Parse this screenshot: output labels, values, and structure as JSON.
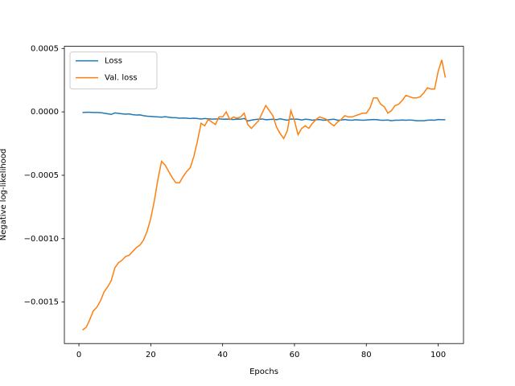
{
  "chart_data": {
    "type": "line",
    "xlabel": "Epochs",
    "ylabel": "Negative log-likelihood",
    "x": [
      1,
      2,
      3,
      4,
      5,
      6,
      7,
      8,
      9,
      10,
      11,
      12,
      13,
      14,
      15,
      16,
      17,
      18,
      19,
      20,
      21,
      22,
      23,
      24,
      25,
      26,
      27,
      28,
      29,
      30,
      31,
      32,
      33,
      34,
      35,
      36,
      37,
      38,
      39,
      40,
      41,
      42,
      43,
      44,
      45,
      46,
      47,
      48,
      49,
      50,
      51,
      52,
      53,
      54,
      55,
      56,
      57,
      58,
      59,
      60,
      61,
      62,
      63,
      64,
      65,
      66,
      67,
      68,
      69,
      70,
      71,
      72,
      73,
      74,
      75,
      76,
      77,
      78,
      79,
      80,
      81,
      82,
      83,
      84,
      85,
      86,
      87,
      88,
      89,
      90,
      91,
      92,
      93,
      94,
      95,
      96,
      97,
      98,
      99,
      100,
      101,
      102
    ],
    "series": [
      {
        "name": "Loss",
        "color": "#1f77b4",
        "values": [
          -5e-06,
          -3e-06,
          -3e-06,
          -5e-06,
          -5e-06,
          -6e-06,
          -1e-05,
          -1.5e-05,
          -2e-05,
          -8e-06,
          -1.2e-05,
          -1.5e-05,
          -1.8e-05,
          -1.6e-05,
          -2.2e-05,
          -2.5e-05,
          -2.4e-05,
          -3e-05,
          -3.4e-05,
          -3.6e-05,
          -3.8e-05,
          -4e-05,
          -4.2e-05,
          -3.8e-05,
          -4.2e-05,
          -4.6e-05,
          -4.6e-05,
          -5e-05,
          -4.8e-05,
          -5e-05,
          -5.2e-05,
          -5e-05,
          -5.2e-05,
          -5.6e-05,
          -5.2e-05,
          -5.5e-05,
          -5.7e-05,
          -5.6e-05,
          -5.5e-05,
          -5.8e-05,
          -5.7e-05,
          -5.8e-05,
          -6e-05,
          -5.7e-05,
          -5.8e-05,
          -5.2e-05,
          -7.2e-05,
          -6.5e-05,
          -6e-05,
          -5.8e-05,
          -5.6e-05,
          -6.2e-05,
          -6e-05,
          -5.8e-05,
          -6.2e-05,
          -5.5e-05,
          -6e-05,
          -6.6e-05,
          -5.6e-05,
          -5.8e-05,
          -5.8e-05,
          -6.4e-05,
          -5.8e-05,
          -6e-05,
          -6.6e-05,
          -6.2e-05,
          -6e-05,
          -6.6e-05,
          -6.4e-05,
          -6e-05,
          -5.8e-05,
          -6.6e-05,
          -6.4e-05,
          -6e-05,
          -6.4e-05,
          -6.6e-05,
          -6.2e-05,
          -6.4e-05,
          -6.6e-05,
          -6.4e-05,
          -6.2e-05,
          -6e-05,
          -6.2e-05,
          -6.6e-05,
          -6.6e-05,
          -6.4e-05,
          -7e-05,
          -6.6e-05,
          -6.6e-05,
          -6.4e-05,
          -6.6e-05,
          -6.4e-05,
          -6.6e-05,
          -7e-05,
          -7e-05,
          -7e-05,
          -6.6e-05,
          -6.4e-05,
          -6.6e-05,
          -6e-05,
          -6.2e-05,
          -6.2e-05
        ]
      },
      {
        "name": "Val. loss",
        "color": "#ff7f0e",
        "values": [
          -0.00172,
          -0.0017,
          -0.00164,
          -0.00157,
          -0.00154,
          -0.00149,
          -0.00142,
          -0.00138,
          -0.00133,
          -0.00123,
          -0.00119,
          -0.00117,
          -0.00114,
          -0.00113,
          -0.0011,
          -0.00107,
          -0.00105,
          -0.00101,
          -0.00094,
          -0.00084,
          -0.0007,
          -0.00053,
          -0.00039,
          -0.00042,
          -0.00047,
          -0.00052,
          -0.00056,
          -0.00056,
          -0.00051,
          -0.00047,
          -0.00044,
          -0.00035,
          -0.00023,
          -9e-05,
          -0.00011,
          -6e-05,
          -8e-05,
          -0.0001,
          -4e-05,
          -4e-05,
          0,
          -6e-05,
          -4e-05,
          -5e-05,
          -4e-05,
          -1e-05,
          -0.0001,
          -0.00013,
          -0.0001,
          -7e-05,
          -1e-05,
          5e-05,
          1e-05,
          -3e-05,
          -0.00012,
          -0.00017,
          -0.00021,
          -0.00015,
          1e-05,
          -7e-05,
          -0.00018,
          -0.00013,
          -0.00011,
          -0.00013,
          -9e-05,
          -6e-05,
          -4e-05,
          -5e-05,
          -6e-05,
          -9e-05,
          -0.00011,
          -8e-05,
          -6e-05,
          -3e-05,
          -4e-05,
          -4e-05,
          -3e-05,
          -2e-05,
          -1e-05,
          -1e-05,
          3e-05,
          0.00011,
          0.00011,
          6e-05,
          4e-05,
          -1e-05,
          1e-05,
          5e-05,
          6e-05,
          9e-05,
          0.00013,
          0.00012,
          0.00011,
          0.00011,
          0.00012,
          0.00015,
          0.00019,
          0.00018,
          0.00018,
          0.00032,
          0.00041,
          0.00027
        ]
      }
    ],
    "xlim": [
      -4.05,
      107.05
    ],
    "xticks": [
      0,
      20,
      40,
      60,
      80,
      100
    ],
    "ylim": [
      -0.001827,
      0.000517
    ],
    "yticks": [
      {
        "value": -0.0015,
        "label": "−0.0015"
      },
      {
        "value": -0.001,
        "label": "−0.0010"
      },
      {
        "value": -0.0005,
        "label": "−0.0005"
      },
      {
        "value": 0,
        "label": "0.0000"
      },
      {
        "value": 0.0005,
        "label": "0.0005"
      }
    ],
    "legend": "upper left"
  }
}
